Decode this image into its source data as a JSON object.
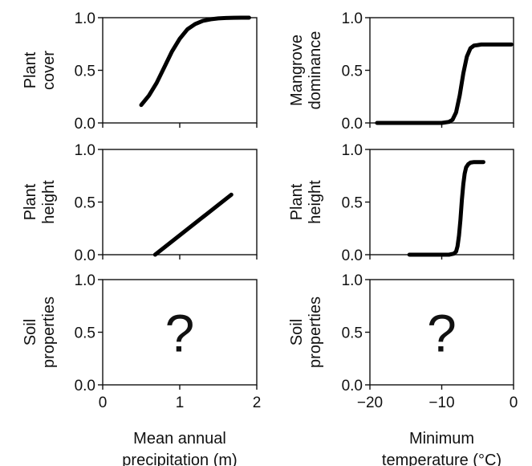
{
  "chart_data": [
    {
      "type": "line",
      "ylabel": [
        "Plant",
        "cover"
      ],
      "xlim": [
        0,
        2
      ],
      "ylim": [
        0,
        1
      ],
      "xticks": [
        "0",
        "1",
        "2"
      ],
      "yticks": [
        "0.0",
        "0.5",
        "1.0"
      ],
      "show_xticklabels": false,
      "xlabel": [],
      "series": [
        {
          "x": [
            0.5,
            0.6,
            0.7,
            0.8,
            0.9,
            1.0,
            1.1,
            1.2,
            1.3,
            1.4,
            1.5,
            1.6,
            1.7,
            1.8,
            1.9
          ],
          "y": [
            0.17,
            0.26,
            0.38,
            0.53,
            0.68,
            0.8,
            0.89,
            0.94,
            0.97,
            0.985,
            0.993,
            0.997,
            0.999,
            1.0,
            1.0
          ]
        }
      ],
      "annotation": ""
    },
    {
      "type": "line",
      "ylabel": [
        "Mangrove",
        "dominance"
      ],
      "xlim": [
        -20,
        0
      ],
      "ylim": [
        0,
        1
      ],
      "xticks": [
        "−20",
        "−10",
        "0"
      ],
      "yticks": [
        "0.0",
        "0.5",
        "1.0"
      ],
      "show_xticklabels": false,
      "xlabel": [],
      "series": [
        {
          "x": [
            -19,
            -14,
            -10,
            -9,
            -8.5,
            -8,
            -7.5,
            -7,
            -6.5,
            -6,
            -5.5,
            -5,
            -4.5,
            -4,
            -3,
            -2,
            -0.3
          ],
          "y": [
            0,
            0,
            0,
            0.01,
            0.03,
            0.1,
            0.26,
            0.47,
            0.63,
            0.71,
            0.735,
            0.74,
            0.745,
            0.745,
            0.745,
            0.745,
            0.745
          ]
        }
      ],
      "annotation": ""
    },
    {
      "type": "line",
      "ylabel": [
        "Plant",
        "height"
      ],
      "xlim": [
        0,
        2
      ],
      "ylim": [
        0,
        1
      ],
      "xticks": [
        "0",
        "1",
        "2"
      ],
      "yticks": [
        "0.0",
        "0.5",
        "1.0"
      ],
      "show_xticklabels": false,
      "xlabel": [],
      "series": [
        {
          "x": [
            0.68,
            1.67
          ],
          "y": [
            0.0,
            0.57
          ]
        }
      ],
      "annotation": ""
    },
    {
      "type": "line",
      "ylabel": [
        "Plant",
        "height"
      ],
      "xlim": [
        -20,
        0
      ],
      "ylim": [
        0,
        1
      ],
      "xticks": [
        "−20",
        "−10",
        "0"
      ],
      "yticks": [
        "0.0",
        "0.5",
        "1.0"
      ],
      "show_xticklabels": false,
      "xlabel": [],
      "series": [
        {
          "x": [
            -14.5,
            -11,
            -9,
            -8.3,
            -8,
            -7.8,
            -7.6,
            -7.4,
            -7.2,
            -7,
            -6.8,
            -6.6,
            -6.3,
            -6,
            -5.5,
            -5,
            -4.2
          ],
          "y": [
            0,
            0,
            0,
            0.01,
            0.03,
            0.08,
            0.18,
            0.33,
            0.52,
            0.67,
            0.77,
            0.83,
            0.86,
            0.875,
            0.88,
            0.88,
            0.88
          ]
        }
      ],
      "annotation": ""
    },
    {
      "type": "line",
      "ylabel": [
        "Soil",
        "properties"
      ],
      "xlim": [
        0,
        2
      ],
      "ylim": [
        0,
        1
      ],
      "xticks": [
        "0",
        "1",
        "2"
      ],
      "yticks": [
        "0.0",
        "0.5",
        "1.0"
      ],
      "show_xticklabels": true,
      "xlabel": [
        "Mean annual",
        "precipitation (m)"
      ],
      "series": [],
      "annotation": "?"
    },
    {
      "type": "line",
      "ylabel": [
        "Soil",
        "properties"
      ],
      "xlim": [
        -20,
        0
      ],
      "ylim": [
        0,
        1
      ],
      "xticks": [
        "−20",
        "−10",
        "0"
      ],
      "yticks": [
        "0.0",
        "0.5",
        "1.0"
      ],
      "show_xticklabels": true,
      "xlabel": [
        "Minimum",
        "temperature (°C)"
      ],
      "series": [],
      "annotation": "?"
    }
  ]
}
